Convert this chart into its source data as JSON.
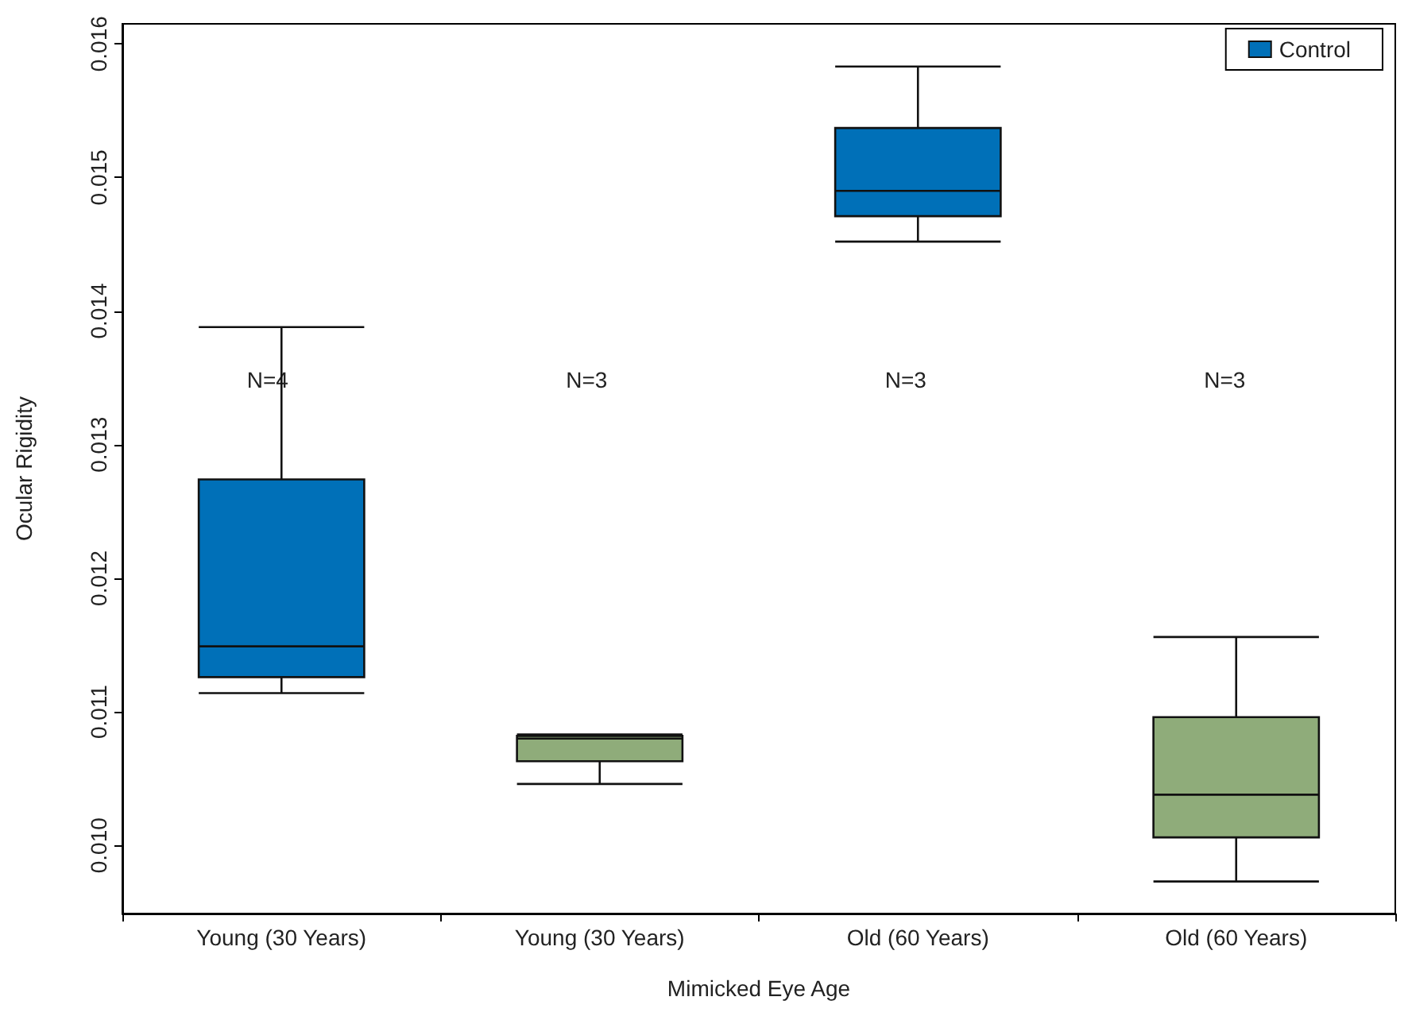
{
  "chart_data": {
    "type": "box",
    "xlabel": "Mimicked Eye Age",
    "ylabel": "Ocular Rigidity",
    "categories": [
      "Young (30 Years)",
      "Young (30 Years)",
      "Old (60 Years)",
      "Old (60 Years)"
    ],
    "series": [
      {
        "name": "Control",
        "color": "#0070b8",
        "boxes": [
          {
            "low": 0.01114,
            "q1": 0.01126,
            "median": 0.01149,
            "q3": 0.01274,
            "high": 0.01388
          },
          null,
          {
            "low": 0.01452,
            "q1": 0.01471,
            "median": 0.0149,
            "q3": 0.01537,
            "high": 0.01583
          },
          null
        ]
      },
      {
        "color": "#8fac7a",
        "boxes": [
          null,
          {
            "low": 0.01046,
            "q1": 0.01063,
            "median": 0.0108,
            "q3": 0.01082,
            "high": 0.01083
          },
          null,
          {
            "low": 0.00973,
            "q1": 0.01006,
            "median": 0.01038,
            "q3": 0.01096,
            "high": 0.01156
          }
        ]
      }
    ],
    "annotations": [
      "N=4",
      "N=3",
      "N=3",
      "N=3"
    ],
    "ylim": [
      0.00949,
      0.01615
    ],
    "yticks": [
      {
        "value": 0.01,
        "label": "0.010"
      },
      {
        "value": 0.011,
        "label": "0.011"
      },
      {
        "value": 0.012,
        "label": "0.012"
      },
      {
        "value": 0.013,
        "label": "0.013"
      },
      {
        "value": 0.014,
        "label": "0.014"
      },
      {
        "value": 0.015,
        "label": "0.015"
      },
      {
        "value": 0.016,
        "label": "0.016"
      }
    ],
    "grid": false,
    "legend": "top right"
  }
}
